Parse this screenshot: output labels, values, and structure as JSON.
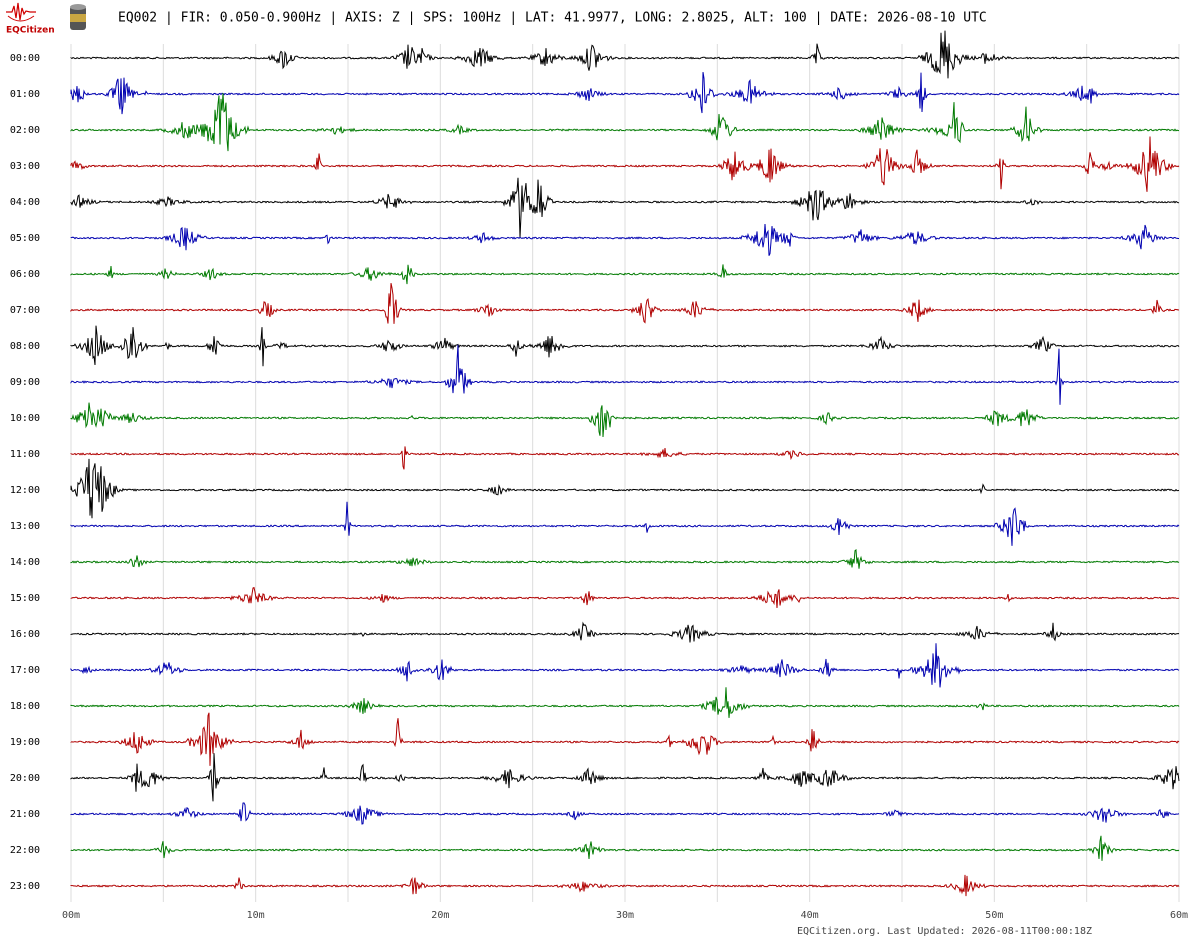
{
  "logo": {
    "text": "EQCitizen"
  },
  "header": {
    "title": "EQ002 | FIR: 0.050-0.900Hz | AXIS: Z | SPS: 100Hz | LAT: 41.9977, LONG: 2.8025, ALT: 100 | DATE: 2026-08-10 UTC"
  },
  "chart_data": {
    "type": "helicorder",
    "rows": [
      "00:00",
      "01:00",
      "02:00",
      "03:00",
      "04:00",
      "05:00",
      "06:00",
      "07:00",
      "08:00",
      "09:00",
      "10:00",
      "11:00",
      "12:00",
      "13:00",
      "14:00",
      "15:00",
      "16:00",
      "17:00",
      "18:00",
      "19:00",
      "20:00",
      "21:00",
      "22:00",
      "23:00"
    ],
    "colors": [
      "#000000",
      "#0000b0",
      "#007a00",
      "#b00000"
    ],
    "xlim": [
      0,
      60
    ],
    "xticks": [
      {
        "value": 0,
        "label": "00m"
      },
      {
        "value": 10,
        "label": "10m"
      },
      {
        "value": 20,
        "label": "20m"
      },
      {
        "value": 30,
        "label": "30m"
      },
      {
        "value": 40,
        "label": "40m"
      },
      {
        "value": 50,
        "label": "50m"
      },
      {
        "value": 60,
        "label": "60m"
      }
    ],
    "grid": true
  },
  "footer": {
    "text": "EQCitizen.org. Last Updated: 2026-08-11T00:00:18Z"
  }
}
